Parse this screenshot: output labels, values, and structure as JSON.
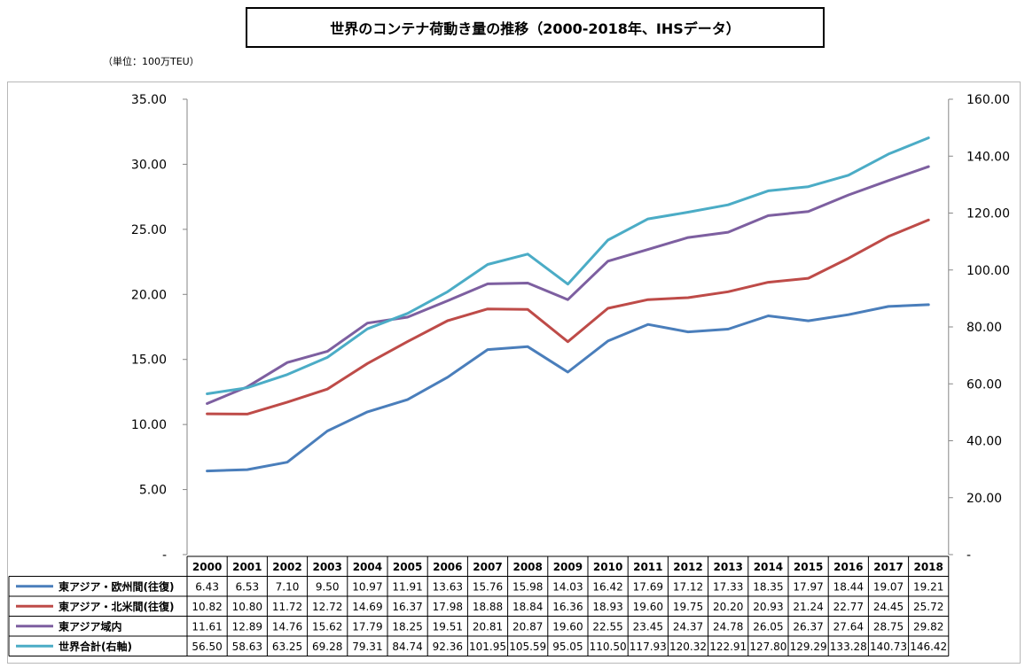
{
  "title": "世界のコンテナ荷動き量の推移（2000-2018年、IHSデータ）",
  "unit_label": "（単位：100万TEU）",
  "chart_data": {
    "type": "line",
    "categories": [
      "2000",
      "2001",
      "2002",
      "2003",
      "2004",
      "2005",
      "2006",
      "2007",
      "2008",
      "2009",
      "2010",
      "2011",
      "2012",
      "2013",
      "2014",
      "2015",
      "2016",
      "2017",
      "2018"
    ],
    "left_axis": {
      "ylim": [
        0,
        35
      ],
      "ticks": [
        "-",
        "5.00",
        "10.00",
        "15.00",
        "20.00",
        "25.00",
        "30.00",
        "35.00"
      ]
    },
    "right_axis": {
      "ylim": [
        0,
        160
      ],
      "ticks": [
        "-",
        "20.00",
        "40.00",
        "60.00",
        "80.00",
        "100.00",
        "120.00",
        "140.00",
        "160.00"
      ]
    },
    "series": [
      {
        "name": "東アジア・欧州間(往復)",
        "color": "#4a7ebb",
        "axis": "left",
        "values": [
          6.43,
          6.53,
          7.1,
          9.5,
          10.97,
          11.91,
          13.63,
          15.76,
          15.98,
          14.03,
          16.42,
          17.69,
          17.12,
          17.33,
          18.35,
          17.97,
          18.44,
          19.07,
          19.21
        ],
        "labels": [
          "6.43",
          "6.53",
          "7.10",
          "9.50",
          "10.97",
          "11.91",
          "13.63",
          "15.76",
          "15.98",
          "14.03",
          "16.42",
          "17.69",
          "17.12",
          "17.33",
          "18.35",
          "17.97",
          "18.44",
          "19.07",
          "19.21"
        ]
      },
      {
        "name": "東アジア・北米間(往復)",
        "color": "#be4b48",
        "axis": "left",
        "values": [
          10.82,
          10.8,
          11.72,
          12.72,
          14.69,
          16.37,
          17.98,
          18.88,
          18.84,
          16.36,
          18.93,
          19.6,
          19.75,
          20.2,
          20.93,
          21.24,
          22.77,
          24.45,
          25.72
        ],
        "labels": [
          "10.82",
          "10.80",
          "11.72",
          "12.72",
          "14.69",
          "16.37",
          "17.98",
          "18.88",
          "18.84",
          "16.36",
          "18.93",
          "19.60",
          "19.75",
          "20.20",
          "20.93",
          "21.24",
          "22.77",
          "24.45",
          "25.72"
        ]
      },
      {
        "name": "東アジア域内",
        "color": "#7d5fa0",
        "axis": "left",
        "values": [
          11.61,
          12.89,
          14.76,
          15.62,
          17.79,
          18.25,
          19.51,
          20.81,
          20.87,
          19.6,
          22.55,
          23.45,
          24.37,
          24.78,
          26.05,
          26.37,
          27.64,
          28.75,
          29.82
        ],
        "labels": [
          "11.61",
          "12.89",
          "14.76",
          "15.62",
          "17.79",
          "18.25",
          "19.51",
          "20.81",
          "20.87",
          "19.60",
          "22.55",
          "23.45",
          "24.37",
          "24.78",
          "26.05",
          "26.37",
          "27.64",
          "28.75",
          "29.82"
        ]
      },
      {
        "name": "世界合計(右軸)",
        "color": "#4bacc6",
        "axis": "right",
        "values": [
          56.5,
          58.63,
          63.25,
          69.28,
          79.31,
          84.74,
          92.36,
          101.95,
          105.59,
          95.05,
          110.5,
          117.93,
          120.32,
          122.91,
          127.8,
          129.29,
          133.28,
          140.73,
          146.42
        ],
        "labels": [
          "56.50",
          "58.63",
          "63.25",
          "69.28",
          "79.31",
          "84.74",
          "92.36",
          "101.95",
          "105.59",
          "95.05",
          "110.50",
          "117.93",
          "120.32",
          "122.91",
          "127.80",
          "129.29",
          "133.28",
          "140.73",
          "146.42"
        ]
      }
    ]
  }
}
